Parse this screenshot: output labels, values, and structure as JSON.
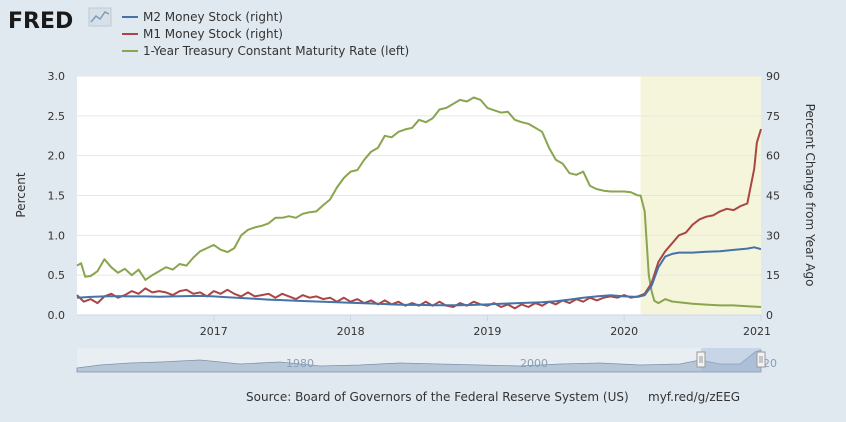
{
  "header": {
    "logo_text": "FRED",
    "logo_icon": "line-chart-icon"
  },
  "footer": {
    "source": "Source: Board of Governors of the Federal Reserve System (US)",
    "link": "myf.red/g/zEEG"
  },
  "navigator": {
    "labels": [
      "1980",
      "2000",
      "20"
    ]
  },
  "colors": {
    "m2": "#4572a7",
    "m1": "#aa4643",
    "treasury": "#89a54e",
    "recession": "#f5f5dc",
    "background": "#e1e9f0"
  },
  "chart_data": {
    "type": "line",
    "legend": {
      "placement": "top-left",
      "entries": [
        "M2 Money Stock (right)",
        "M1 Money Stock (right)",
        "1-Year Treasury Constant Maturity Rate (left)"
      ]
    },
    "left_axis": {
      "title": "Percent",
      "range": [
        0,
        3.0
      ],
      "ticks": [
        "0.0",
        "0.5",
        "1.0",
        "1.5",
        "2.0",
        "2.5",
        "3.0"
      ]
    },
    "right_axis": {
      "title": "Percent Change from Year Ago",
      "range": [
        0,
        90
      ],
      "ticks": [
        "0",
        "15",
        "30",
        "45",
        "60",
        "75",
        "90"
      ]
    },
    "x_axis": {
      "range": [
        2016.0,
        2021.0
      ],
      "ticks": [
        2017,
        2018,
        2019,
        2020,
        2021
      ],
      "tick_labels": [
        "2017",
        "2018",
        "2019",
        "2020",
        "2021"
      ]
    },
    "recession_shading": [
      2020.12,
      2021.0
    ],
    "grid": "horizontal",
    "series": [
      {
        "name": "1-Year Treasury Constant Maturity Rate (left)",
        "axis": "left",
        "points": [
          [
            2016.0,
            0.62
          ],
          [
            2016.03,
            0.65
          ],
          [
            2016.06,
            0.48
          ],
          [
            2016.1,
            0.49
          ],
          [
            2016.15,
            0.55
          ],
          [
            2016.2,
            0.7
          ],
          [
            2016.25,
            0.6
          ],
          [
            2016.3,
            0.53
          ],
          [
            2016.35,
            0.58
          ],
          [
            2016.4,
            0.5
          ],
          [
            2016.45,
            0.57
          ],
          [
            2016.5,
            0.44
          ],
          [
            2016.55,
            0.5
          ],
          [
            2016.6,
            0.55
          ],
          [
            2016.65,
            0.6
          ],
          [
            2016.7,
            0.57
          ],
          [
            2016.75,
            0.64
          ],
          [
            2016.8,
            0.62
          ],
          [
            2016.85,
            0.72
          ],
          [
            2016.9,
            0.8
          ],
          [
            2016.95,
            0.84
          ],
          [
            2017.0,
            0.88
          ],
          [
            2017.05,
            0.82
          ],
          [
            2017.1,
            0.79
          ],
          [
            2017.15,
            0.84
          ],
          [
            2017.2,
            1.0
          ],
          [
            2017.25,
            1.07
          ],
          [
            2017.3,
            1.1
          ],
          [
            2017.35,
            1.12
          ],
          [
            2017.4,
            1.15
          ],
          [
            2017.45,
            1.22
          ],
          [
            2017.5,
            1.22
          ],
          [
            2017.55,
            1.24
          ],
          [
            2017.6,
            1.22
          ],
          [
            2017.65,
            1.27
          ],
          [
            2017.7,
            1.29
          ],
          [
            2017.75,
            1.3
          ],
          [
            2017.8,
            1.38
          ],
          [
            2017.85,
            1.45
          ],
          [
            2017.9,
            1.6
          ],
          [
            2017.95,
            1.72
          ],
          [
            2018.0,
            1.8
          ],
          [
            2018.05,
            1.82
          ],
          [
            2018.1,
            1.95
          ],
          [
            2018.15,
            2.05
          ],
          [
            2018.2,
            2.1
          ],
          [
            2018.25,
            2.25
          ],
          [
            2018.3,
            2.23
          ],
          [
            2018.35,
            2.3
          ],
          [
            2018.4,
            2.33
          ],
          [
            2018.45,
            2.35
          ],
          [
            2018.5,
            2.45
          ],
          [
            2018.55,
            2.42
          ],
          [
            2018.6,
            2.47
          ],
          [
            2018.65,
            2.58
          ],
          [
            2018.7,
            2.6
          ],
          [
            2018.75,
            2.65
          ],
          [
            2018.8,
            2.7
          ],
          [
            2018.85,
            2.68
          ],
          [
            2018.9,
            2.73
          ],
          [
            2018.95,
            2.7
          ],
          [
            2019.0,
            2.6
          ],
          [
            2019.05,
            2.57
          ],
          [
            2019.1,
            2.54
          ],
          [
            2019.15,
            2.55
          ],
          [
            2019.2,
            2.45
          ],
          [
            2019.25,
            2.42
          ],
          [
            2019.3,
            2.4
          ],
          [
            2019.35,
            2.35
          ],
          [
            2019.4,
            2.3
          ],
          [
            2019.45,
            2.1
          ],
          [
            2019.5,
            1.95
          ],
          [
            2019.55,
            1.9
          ],
          [
            2019.6,
            1.78
          ],
          [
            2019.65,
            1.76
          ],
          [
            2019.7,
            1.8
          ],
          [
            2019.75,
            1.62
          ],
          [
            2019.8,
            1.58
          ],
          [
            2019.85,
            1.56
          ],
          [
            2019.9,
            1.55
          ],
          [
            2019.95,
            1.55
          ],
          [
            2020.0,
            1.55
          ],
          [
            2020.05,
            1.54
          ],
          [
            2020.1,
            1.5
          ],
          [
            2020.12,
            1.5
          ],
          [
            2020.15,
            1.3
          ],
          [
            2020.18,
            0.5
          ],
          [
            2020.2,
            0.3
          ],
          [
            2020.22,
            0.18
          ],
          [
            2020.25,
            0.15
          ],
          [
            2020.3,
            0.2
          ],
          [
            2020.35,
            0.17
          ],
          [
            2020.4,
            0.16
          ],
          [
            2020.5,
            0.14
          ],
          [
            2020.6,
            0.13
          ],
          [
            2020.7,
            0.12
          ],
          [
            2020.8,
            0.12
          ],
          [
            2020.9,
            0.11
          ],
          [
            2021.0,
            0.1
          ]
        ]
      },
      {
        "name": "M1 Money Stock (right)",
        "axis": "right",
        "points": [
          [
            2016.0,
            7.5
          ],
          [
            2016.05,
            5
          ],
          [
            2016.1,
            6
          ],
          [
            2016.15,
            4.5
          ],
          [
            2016.2,
            7
          ],
          [
            2016.25,
            8
          ],
          [
            2016.3,
            6.5
          ],
          [
            2016.35,
            7.5
          ],
          [
            2016.4,
            9
          ],
          [
            2016.45,
            8
          ],
          [
            2016.5,
            10
          ],
          [
            2016.55,
            8.5
          ],
          [
            2016.6,
            9
          ],
          [
            2016.65,
            8.5
          ],
          [
            2016.7,
            7.5
          ],
          [
            2016.75,
            9
          ],
          [
            2016.8,
            9.5
          ],
          [
            2016.85,
            8
          ],
          [
            2016.9,
            8.5
          ],
          [
            2016.95,
            7
          ],
          [
            2017.0,
            9
          ],
          [
            2017.05,
            8
          ],
          [
            2017.1,
            9.5
          ],
          [
            2017.15,
            8
          ],
          [
            2017.2,
            7
          ],
          [
            2017.25,
            8.5
          ],
          [
            2017.3,
            7
          ],
          [
            2017.35,
            7.5
          ],
          [
            2017.4,
            8
          ],
          [
            2017.45,
            6.5
          ],
          [
            2017.5,
            8
          ],
          [
            2017.55,
            7
          ],
          [
            2017.6,
            6
          ],
          [
            2017.65,
            7.5
          ],
          [
            2017.7,
            6.5
          ],
          [
            2017.75,
            7
          ],
          [
            2017.8,
            6
          ],
          [
            2017.85,
            6.5
          ],
          [
            2017.9,
            5
          ],
          [
            2017.95,
            6.5
          ],
          [
            2018.0,
            5
          ],
          [
            2018.05,
            6
          ],
          [
            2018.1,
            4.5
          ],
          [
            2018.15,
            5.5
          ],
          [
            2018.2,
            4
          ],
          [
            2018.25,
            5.5
          ],
          [
            2018.3,
            4
          ],
          [
            2018.35,
            5
          ],
          [
            2018.4,
            3.5
          ],
          [
            2018.45,
            4.5
          ],
          [
            2018.5,
            3.5
          ],
          [
            2018.55,
            5
          ],
          [
            2018.6,
            3.5
          ],
          [
            2018.65,
            5
          ],
          [
            2018.7,
            3.5
          ],
          [
            2018.75,
            3
          ],
          [
            2018.8,
            4.5
          ],
          [
            2018.85,
            3.5
          ],
          [
            2018.9,
            5
          ],
          [
            2018.95,
            4
          ],
          [
            2019.0,
            3.5
          ],
          [
            2019.05,
            4.5
          ],
          [
            2019.1,
            3
          ],
          [
            2019.15,
            4
          ],
          [
            2019.2,
            2.5
          ],
          [
            2019.25,
            4
          ],
          [
            2019.3,
            3
          ],
          [
            2019.35,
            4.5
          ],
          [
            2019.4,
            3.5
          ],
          [
            2019.45,
            5
          ],
          [
            2019.5,
            4
          ],
          [
            2019.55,
            5.5
          ],
          [
            2019.6,
            4.5
          ],
          [
            2019.65,
            6
          ],
          [
            2019.7,
            5
          ],
          [
            2019.75,
            6.5
          ],
          [
            2019.8,
            5.5
          ],
          [
            2019.85,
            6.5
          ],
          [
            2019.9,
            7
          ],
          [
            2019.95,
            6.5
          ],
          [
            2020.0,
            7.5
          ],
          [
            2020.05,
            6.5
          ],
          [
            2020.1,
            7
          ],
          [
            2020.15,
            8
          ],
          [
            2020.2,
            12
          ],
          [
            2020.25,
            20
          ],
          [
            2020.3,
            24
          ],
          [
            2020.35,
            27
          ],
          [
            2020.4,
            30
          ],
          [
            2020.45,
            31
          ],
          [
            2020.5,
            34
          ],
          [
            2020.55,
            36
          ],
          [
            2020.6,
            37
          ],
          [
            2020.65,
            37.5
          ],
          [
            2020.7,
            39
          ],
          [
            2020.75,
            40
          ],
          [
            2020.8,
            39.5
          ],
          [
            2020.85,
            41
          ],
          [
            2020.9,
            42
          ],
          [
            2020.95,
            55
          ],
          [
            2020.97,
            65
          ],
          [
            2021.0,
            70
          ]
        ]
      },
      {
        "name": "M2 Money Stock (right)",
        "axis": "right",
        "points": [
          [
            2016.0,
            6.5
          ],
          [
            2016.1,
            6.8
          ],
          [
            2016.2,
            7.0
          ],
          [
            2016.3,
            7.1
          ],
          [
            2016.4,
            7.0
          ],
          [
            2016.5,
            7.0
          ],
          [
            2016.6,
            6.9
          ],
          [
            2016.7,
            7.0
          ],
          [
            2016.8,
            7.1
          ],
          [
            2016.9,
            7.2
          ],
          [
            2017.0,
            7.0
          ],
          [
            2017.1,
            6.7
          ],
          [
            2017.2,
            6.4
          ],
          [
            2017.3,
            6.1
          ],
          [
            2017.4,
            5.8
          ],
          [
            2017.5,
            5.6
          ],
          [
            2017.6,
            5.4
          ],
          [
            2017.7,
            5.2
          ],
          [
            2017.8,
            5.0
          ],
          [
            2017.9,
            4.8
          ],
          [
            2018.0,
            4.6
          ],
          [
            2018.1,
            4.4
          ],
          [
            2018.2,
            4.2
          ],
          [
            2018.3,
            4.0
          ],
          [
            2018.4,
            3.8
          ],
          [
            2018.5,
            3.8
          ],
          [
            2018.6,
            3.7
          ],
          [
            2018.7,
            3.7
          ],
          [
            2018.8,
            3.7
          ],
          [
            2018.9,
            3.8
          ],
          [
            2019.0,
            4.0
          ],
          [
            2019.1,
            4.2
          ],
          [
            2019.2,
            4.4
          ],
          [
            2019.3,
            4.6
          ],
          [
            2019.4,
            4.8
          ],
          [
            2019.5,
            5.2
          ],
          [
            2019.6,
            5.8
          ],
          [
            2019.7,
            6.5
          ],
          [
            2019.8,
            7.0
          ],
          [
            2019.9,
            7.4
          ],
          [
            2020.0,
            7.0
          ],
          [
            2020.1,
            6.8
          ],
          [
            2020.15,
            7.5
          ],
          [
            2020.2,
            11
          ],
          [
            2020.25,
            18
          ],
          [
            2020.3,
            22
          ],
          [
            2020.35,
            23
          ],
          [
            2020.4,
            23.5
          ],
          [
            2020.5,
            23.5
          ],
          [
            2020.6,
            23.8
          ],
          [
            2020.7,
            24
          ],
          [
            2020.8,
            24.5
          ],
          [
            2020.9,
            25
          ],
          [
            2020.95,
            25.5
          ],
          [
            2021.0,
            24.8
          ]
        ]
      }
    ]
  }
}
